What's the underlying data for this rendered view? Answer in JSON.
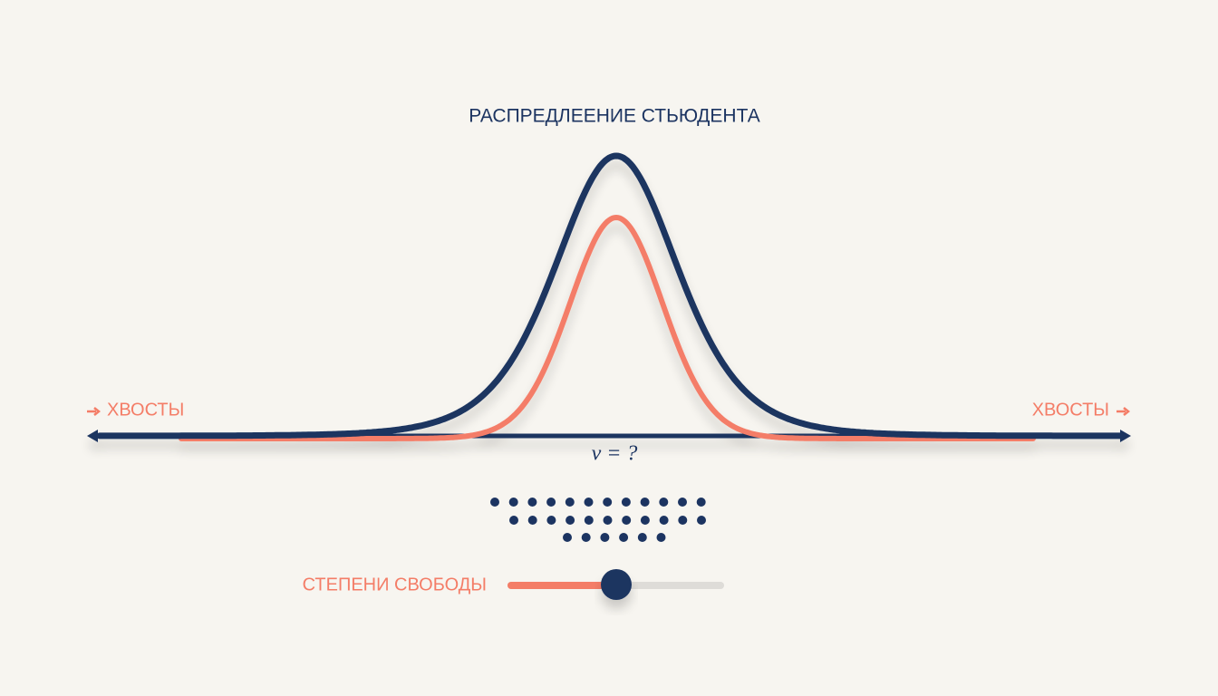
{
  "title": "РАСПРЕДЛЕЕНИЕ СТЬЮДЕНТА",
  "tails": {
    "left": "ХВОСТЫ",
    "right": "ХВОСТЫ"
  },
  "nu_label": "ν = ?",
  "slider": {
    "label": "СТЕПЕНИ СВОБОДЫ"
  }
}
